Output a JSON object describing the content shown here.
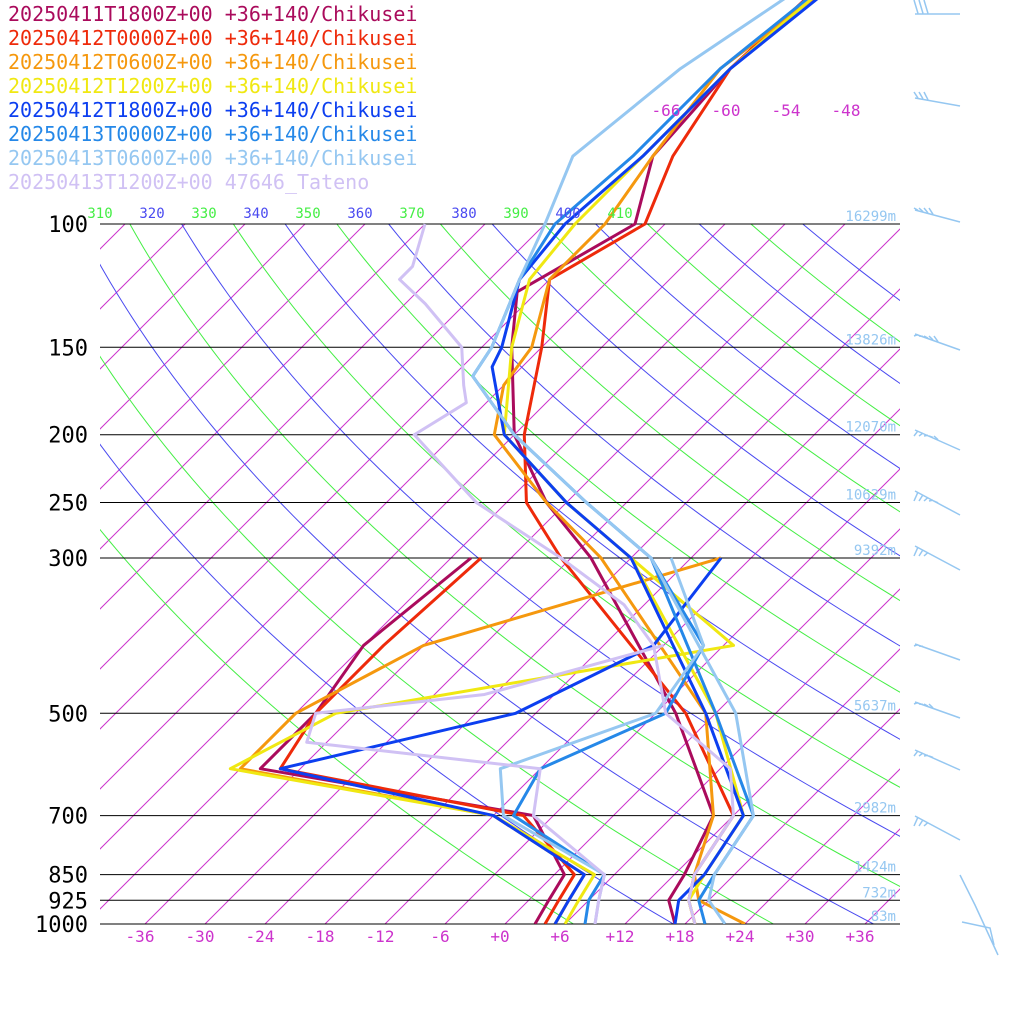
{
  "chart_data": {
    "type": "line",
    "title": "",
    "xlabel": "",
    "ylabel": "",
    "xlim": [
      -40,
      40
    ],
    "ylim": [
      1000,
      100
    ],
    "y_log_scale": true,
    "grid": true,
    "legend": "top-left",
    "x_ticks": [
      "-36",
      "-30",
      "-24",
      "-18",
      "-12",
      "-6",
      "+0",
      "+6",
      "+12",
      "+18",
      "+24",
      "+30",
      "+36"
    ],
    "y_ticks": [
      "100",
      "150",
      "200",
      "250",
      "300",
      "500",
      "700",
      "850",
      "925",
      "1000"
    ],
    "theta_ticks": [
      "310",
      "320",
      "330",
      "340",
      "350",
      "360",
      "370",
      "380",
      "390",
      "400",
      "410"
    ],
    "upper_temp_ticks": [
      "-66",
      "-60",
      "-54",
      "-48"
    ],
    "height_labels": [
      {
        "p": 100,
        "label": "16299m"
      },
      {
        "p": 150,
        "label": "13826m"
      },
      {
        "p": 200,
        "label": "12070m"
      },
      {
        "p": 250,
        "label": "10629m"
      },
      {
        "p": 300,
        "label": "9392m"
      },
      {
        "p": 500,
        "label": "5637m"
      },
      {
        "p": 700,
        "label": "2982m"
      },
      {
        "p": 850,
        "label": "1424m"
      },
      {
        "p": 925,
        "label": "732m"
      },
      {
        "p": 1000,
        "label": "83m"
      }
    ],
    "series": [
      {
        "name": "20250411T1800Z+00 +36+140/Chikusei",
        "color": "#aa0b5c",
        "temperature": [
          [
            1000,
            17
          ],
          [
            925,
            14
          ],
          [
            850,
            13
          ],
          [
            700,
            10
          ],
          [
            500,
            -4
          ],
          [
            300,
            -28
          ],
          [
            250,
            -38
          ],
          [
            200,
            -48
          ],
          [
            150,
            -57
          ],
          [
            125,
            -62
          ],
          [
            100,
            -57
          ],
          [
            80,
            -62
          ],
          [
            60,
            -63
          ],
          [
            40,
            -62
          ],
          [
            30,
            -60
          ]
        ],
        "dewpoint": [
          [
            1000,
            3
          ],
          [
            925,
            2
          ],
          [
            850,
            1
          ],
          [
            700,
            -8
          ],
          [
            600,
            -40
          ],
          [
            500,
            -40
          ],
          [
            400,
            -42
          ],
          [
            300,
            -40
          ]
        ]
      },
      {
        "name": "20250412T0000Z+00 +36+140/Chikusei",
        "color": "#ee2a0a",
        "temperature": [
          [
            1000,
            19
          ],
          [
            925,
            16
          ],
          [
            850,
            14
          ],
          [
            700,
            12
          ],
          [
            500,
            -3
          ],
          [
            300,
            -31
          ],
          [
            250,
            -40
          ],
          [
            200,
            -47
          ],
          [
            150,
            -54
          ],
          [
            120,
            -60
          ],
          [
            100,
            -56
          ],
          [
            80,
            -60
          ],
          [
            60,
            -63
          ],
          [
            40,
            -62
          ],
          [
            30,
            -60
          ]
        ],
        "dewpoint": [
          [
            1000,
            4
          ],
          [
            925,
            3
          ],
          [
            850,
            2
          ],
          [
            700,
            -9
          ],
          [
            600,
            -38
          ],
          [
            500,
            -40
          ],
          [
            400,
            -40
          ],
          [
            300,
            -39
          ]
        ]
      },
      {
        "name": "20250412T0600Z+00 +36+140/Chikusei",
        "color": "#f5980e",
        "temperature": [
          [
            1000,
            24
          ],
          [
            925,
            17
          ],
          [
            850,
            14
          ],
          [
            700,
            10
          ],
          [
            500,
            -1
          ],
          [
            300,
            -27
          ],
          [
            250,
            -38
          ],
          [
            200,
            -50
          ],
          [
            170,
            -54
          ],
          [
            150,
            -55
          ],
          [
            120,
            -60
          ],
          [
            100,
            -60
          ],
          [
            80,
            -62
          ],
          [
            60,
            -64
          ],
          [
            40,
            -60
          ],
          [
            30,
            -58
          ]
        ],
        "dewpoint": [
          [
            1000,
            5
          ],
          [
            925,
            4
          ],
          [
            850,
            3
          ],
          [
            700,
            -12
          ],
          [
            600,
            -42
          ],
          [
            500,
            -42
          ],
          [
            400,
            -36
          ],
          [
            300,
            -15
          ]
        ]
      },
      {
        "name": "20250412T1200Z+00 +36+140/Chikusei",
        "color": "#f0e812",
        "temperature": [
          [
            1000,
            19
          ],
          [
            925,
            16
          ],
          [
            850,
            15
          ],
          [
            700,
            13
          ],
          [
            500,
            0
          ],
          [
            300,
            -24
          ],
          [
            250,
            -36
          ],
          [
            200,
            -49
          ],
          [
            150,
            -57
          ],
          [
            120,
            -62
          ],
          [
            100,
            -63
          ],
          [
            80,
            -63
          ],
          [
            60,
            -63
          ],
          [
            40,
            -61
          ],
          [
            30,
            -59
          ]
        ],
        "dewpoint": [
          [
            1000,
            6
          ],
          [
            925,
            5
          ],
          [
            850,
            4
          ],
          [
            700,
            -12
          ],
          [
            600,
            -43
          ],
          [
            500,
            -38
          ],
          [
            400,
            -5
          ],
          [
            300,
            -24
          ]
        ]
      },
      {
        "name": "20250412T1800Z+00 +36+140/Chikusei",
        "color": "#0c3ff0",
        "temperature": [
          [
            1000,
            17
          ],
          [
            925,
            15
          ],
          [
            850,
            15
          ],
          [
            700,
            13
          ],
          [
            500,
            -1
          ],
          [
            300,
            -24
          ],
          [
            250,
            -36
          ],
          [
            200,
            -49
          ],
          [
            160,
            -57
          ],
          [
            150,
            -58
          ],
          [
            120,
            -63
          ],
          [
            100,
            -64
          ],
          [
            80,
            -63
          ],
          [
            60,
            -63
          ],
          [
            40,
            -60
          ],
          [
            30,
            -58
          ]
        ],
        "dewpoint": [
          [
            1000,
            5
          ],
          [
            925,
            4
          ],
          [
            850,
            3
          ],
          [
            700,
            -12
          ],
          [
            600,
            -38
          ],
          [
            500,
            -20
          ],
          [
            400,
            -13
          ],
          [
            300,
            -15
          ]
        ]
      },
      {
        "name": "20250413T0000Z+00 +36+140/Chikusei",
        "color": "#2588e8",
        "temperature": [
          [
            1000,
            20
          ],
          [
            925,
            17
          ],
          [
            850,
            16
          ],
          [
            700,
            14
          ],
          [
            500,
            0
          ],
          [
            300,
            -22
          ],
          [
            250,
            -34
          ],
          [
            200,
            -48
          ],
          [
            165,
            -58
          ],
          [
            150,
            -59
          ],
          [
            120,
            -63
          ],
          [
            100,
            -65
          ],
          [
            80,
            -64
          ],
          [
            60,
            -64
          ],
          [
            40,
            -61
          ],
          [
            30,
            -59
          ]
        ],
        "dewpoint": [
          [
            1000,
            8
          ],
          [
            925,
            6
          ],
          [
            850,
            5
          ],
          [
            700,
            -10
          ],
          [
            600,
            -12
          ],
          [
            500,
            -5
          ],
          [
            400,
            -8
          ],
          [
            300,
            -22
          ]
        ]
      },
      {
        "name": "20250413T0600Z+00 +36+140/Chikusei",
        "color": "#95c7f1",
        "temperature": [
          [
            1000,
            22
          ],
          [
            925,
            18
          ],
          [
            850,
            16
          ],
          [
            700,
            14
          ],
          [
            500,
            2
          ],
          [
            300,
            -22
          ],
          [
            250,
            -34
          ],
          [
            200,
            -48
          ],
          [
            165,
            -58
          ],
          [
            150,
            -59
          ],
          [
            120,
            -63
          ],
          [
            100,
            -66
          ],
          [
            80,
            -70
          ],
          [
            60,
            -68
          ],
          [
            40,
            -62
          ],
          [
            30,
            -58
          ]
        ],
        "dewpoint": [
          [
            1000,
            9
          ],
          [
            925,
            7
          ],
          [
            850,
            5
          ],
          [
            700,
            -11
          ],
          [
            600,
            -16
          ],
          [
            500,
            -6
          ],
          [
            400,
            -8
          ],
          [
            300,
            -20
          ]
        ]
      },
      {
        "name": "20250413T1200Z+00 47646_Tateno",
        "color": "#d0c1f4",
        "temperature": [
          [
            1000,
            19
          ],
          [
            925,
            16
          ],
          [
            850,
            14
          ],
          [
            700,
            12
          ],
          [
            600,
            7
          ],
          [
            500,
            -5
          ],
          [
            400,
            -13
          ],
          [
            350,
            -20
          ],
          [
            300,
            -31
          ],
          [
            250,
            -45
          ],
          [
            200,
            -58
          ],
          [
            180,
            -56
          ],
          [
            170,
            -58
          ],
          [
            150,
            -62
          ],
          [
            130,
            -70
          ],
          [
            120,
            -75
          ],
          [
            115,
            -75
          ],
          [
            100,
            -78
          ]
        ],
        "dewpoint": [
          [
            1000,
            9
          ],
          [
            925,
            7
          ],
          [
            850,
            5
          ],
          [
            700,
            -8
          ],
          [
            600,
            -12
          ],
          [
            550,
            -38
          ],
          [
            500,
            -40
          ],
          [
            470,
            -25
          ],
          [
            400,
            -12
          ]
        ]
      }
    ],
    "wind_barbs_color": "#95c7f1"
  }
}
